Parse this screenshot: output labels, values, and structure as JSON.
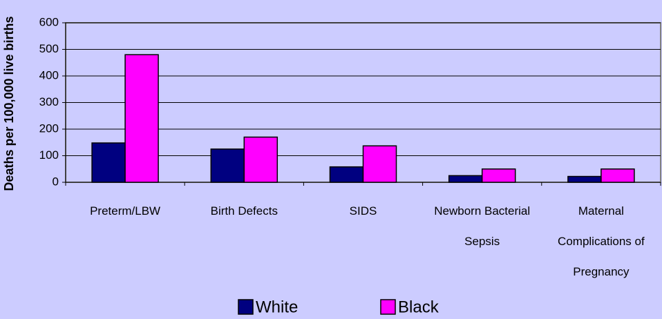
{
  "chart_data": {
    "type": "bar",
    "y_label": "Deaths per 100,000 live births",
    "categories": [
      "Preterm/LBW",
      "Birth Defects",
      "SIDS",
      "Newborn Bacterial Sepsis",
      "Maternal Complications of Pregnancy"
    ],
    "series": [
      {
        "name": "White",
        "color": "#000080",
        "values": [
          148,
          125,
          58,
          25,
          22
        ]
      },
      {
        "name": "Black",
        "color": "#ff00ff",
        "values": [
          480,
          170,
          137,
          50,
          50
        ]
      }
    ],
    "ylim": [
      0,
      600
    ],
    "yticks": [
      0,
      100,
      200,
      300,
      400,
      500,
      600
    ],
    "grid": true,
    "legend": "bottom"
  }
}
